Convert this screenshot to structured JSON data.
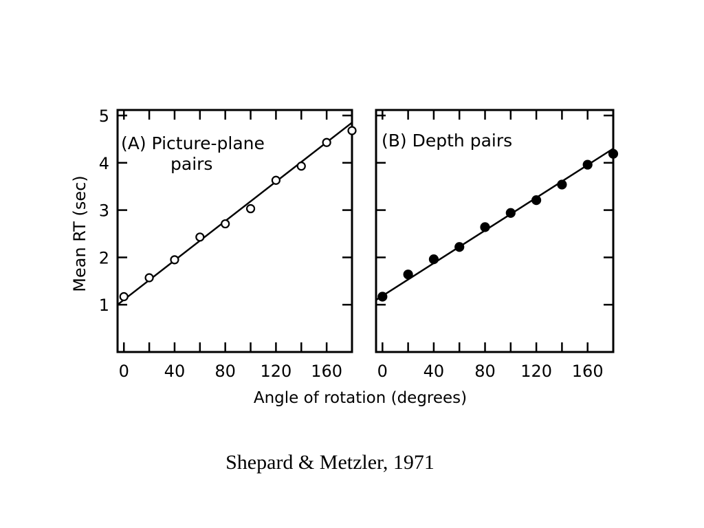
{
  "caption": "Shepard & Metzler, 1971",
  "shared_ylabel": "Mean RT (sec)",
  "shared_xlabel": "Angle of rotation (degrees)",
  "chart_data": [
    {
      "type": "scatter",
      "label_lines": [
        "(A) Picture-plane",
        "pairs"
      ],
      "marker": "open-circle",
      "xlim": [
        -5,
        180
      ],
      "ylim": [
        0,
        5
      ],
      "x_ticks": [
        0,
        40,
        80,
        120,
        160
      ],
      "y_ticks": [
        1,
        2,
        3,
        4,
        5
      ],
      "points": {
        "x": [
          0,
          20,
          40,
          60,
          80,
          100,
          120,
          140,
          160,
          180
        ],
        "y": [
          1.17,
          1.57,
          1.95,
          2.43,
          2.71,
          3.03,
          3.63,
          3.93,
          4.43,
          4.68
        ]
      },
      "fit_line": {
        "x": [
          -5,
          180
        ],
        "y": [
          1.0,
          4.85
        ]
      },
      "grid": false
    },
    {
      "type": "scatter",
      "label_lines": [
        "(B) Depth pairs"
      ],
      "marker": "filled-circle",
      "xlim": [
        -5,
        180
      ],
      "ylim": [
        0,
        5
      ],
      "x_ticks": [
        0,
        40,
        80,
        120,
        160
      ],
      "y_ticks": [
        1,
        2,
        3,
        4,
        5
      ],
      "points": {
        "x": [
          0,
          20,
          40,
          60,
          80,
          100,
          120,
          140,
          160,
          180
        ],
        "y": [
          1.17,
          1.64,
          1.96,
          2.22,
          2.64,
          2.94,
          3.21,
          3.54,
          3.96,
          4.19
        ]
      },
      "fit_line": {
        "x": [
          -5,
          180
        ],
        "y": [
          1.1,
          4.3
        ]
      },
      "grid": false
    }
  ]
}
